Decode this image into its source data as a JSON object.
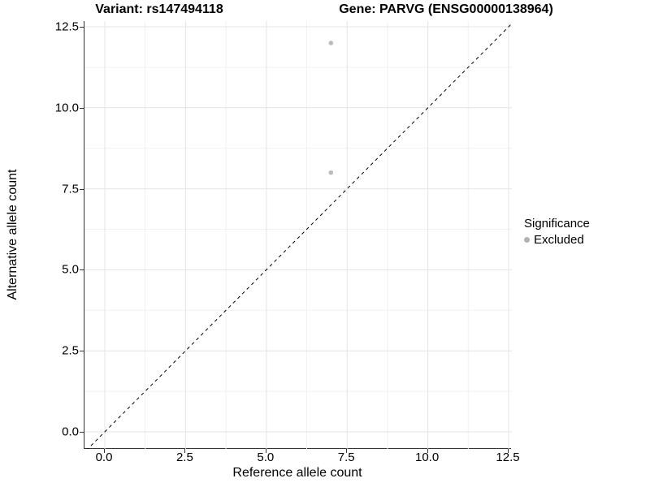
{
  "title": {
    "variant": "Variant: rs147494118",
    "gene": "Gene: PARVG (ENSG00000138964)"
  },
  "axes": {
    "x_label": "Reference allele count",
    "y_label": "Alternative allele count",
    "x_tick_labels": [
      "0.0",
      "2.5",
      "5.0",
      "7.5",
      "10.0",
      "12.5"
    ],
    "y_tick_labels": [
      "0.0",
      "2.5",
      "5.0",
      "7.5",
      "10.0",
      "12.5"
    ]
  },
  "legend": {
    "title": "Significance",
    "items": [
      {
        "label": "Excluded",
        "color": "#b2b2b2"
      }
    ]
  },
  "theme": {
    "grid_major_color": "#e4e4e4",
    "grid_minor_color": "#f1f1f1",
    "axis_line_color": "#333333",
    "reference_line_color": "#000000",
    "marker_color": "#bcbcbc"
  },
  "chart_data": {
    "type": "scatter",
    "title": "Variant: rs147494118 — Gene: PARVG (ENSG00000138964)",
    "xlabel": "Reference allele count",
    "ylabel": "Alternative allele count",
    "xlim": [
      -0.63,
      12.6
    ],
    "ylim": [
      -0.53,
      12.68
    ],
    "x_ticks": [
      0,
      2.5,
      5,
      7.5,
      10,
      12.5
    ],
    "y_ticks": [
      0,
      2.5,
      5,
      7.5,
      10,
      12.5
    ],
    "minor_ticks": [
      1.25,
      3.75,
      6.25,
      8.75,
      11.25
    ],
    "grid": "major+minor",
    "legend_position": "right",
    "series": [
      {
        "name": "Excluded",
        "marker_color": "#bcbcbc",
        "marker_radius_px": 2.8,
        "points": [
          [
            7,
            12
          ],
          [
            7,
            8
          ]
        ]
      }
    ],
    "reference_line": {
      "type": "identity_y_equals_x",
      "style": "dashed",
      "color": "#000000"
    }
  }
}
